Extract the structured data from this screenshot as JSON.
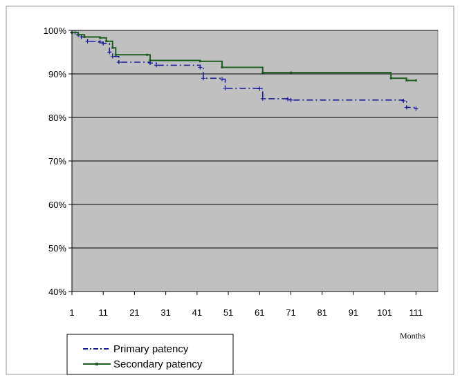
{
  "chart_data": {
    "type": "line",
    "step": true,
    "xlabel": "Months",
    "ylabel": "",
    "xlim": [
      1,
      118
    ],
    "ylim": [
      0.4,
      1.0
    ],
    "x_ticks": [
      1,
      11,
      21,
      31,
      41,
      51,
      61,
      71,
      81,
      91,
      101,
      111
    ],
    "x_tick_labels": [
      "1",
      "11",
      "21",
      "31",
      "41",
      "51",
      "61",
      "71",
      "81",
      "91",
      "101",
      "111"
    ],
    "y_ticks": [
      0.4,
      0.5,
      0.6,
      0.7,
      0.8,
      0.9,
      1.0
    ],
    "y_tick_labels": [
      "40%",
      "50%",
      "60%",
      "70%",
      "80%",
      "90%",
      "100%"
    ],
    "grid": "horizontal",
    "plot_background": "#c0c0c0",
    "legend": {
      "position": "bottom-left",
      "entries": [
        "Primary patency",
        "Secondary patency"
      ]
    },
    "series": [
      {
        "name": "Primary patency",
        "color": "#1a1a99",
        "line_style": "dash-dot",
        "x": [
          1,
          2,
          3,
          4,
          6,
          10,
          11,
          13,
          14,
          16,
          26,
          28,
          42,
          43,
          49,
          50,
          61,
          62,
          70,
          71,
          107,
          108,
          111
        ],
        "y": [
          0.995,
          0.995,
          0.99,
          0.985,
          0.975,
          0.973,
          0.97,
          0.95,
          0.94,
          0.927,
          0.925,
          0.92,
          0.915,
          0.89,
          0.888,
          0.867,
          0.866,
          0.843,
          0.842,
          0.84,
          0.838,
          0.823,
          0.82
        ]
      },
      {
        "name": "Secondary patency",
        "color": "#1f5c1f",
        "line_style": "solid",
        "x": [
          1,
          3,
          5,
          10,
          12,
          14,
          15,
          25,
          26,
          42,
          49,
          62,
          71,
          103,
          108,
          111
        ],
        "y": [
          0.995,
          0.99,
          0.985,
          0.983,
          0.975,
          0.96,
          0.944,
          0.944,
          0.931,
          0.929,
          0.915,
          0.903,
          0.903,
          0.89,
          0.885,
          0.885
        ]
      }
    ]
  }
}
